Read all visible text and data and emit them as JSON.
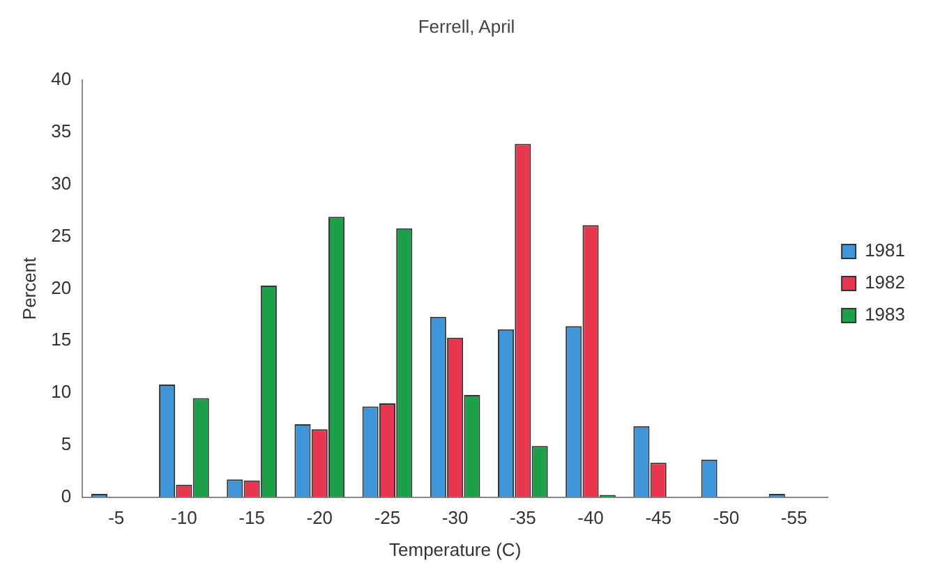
{
  "chart_data": {
    "type": "bar",
    "title": "Ferrell, April",
    "xlabel": "Temperature (C)",
    "ylabel": "Percent",
    "categories": [
      "-5",
      "-10",
      "-15",
      "-20",
      "-25",
      "-30",
      "-35",
      "-40",
      "-45",
      "-50",
      "-55"
    ],
    "series": [
      {
        "name": "1981",
        "color": "#3f95d8",
        "values": [
          0.3,
          10.8,
          1.7,
          7.0,
          8.7,
          17.3,
          16.1,
          16.4,
          6.8,
          3.6,
          0.3
        ]
      },
      {
        "name": "1982",
        "color": "#e8374f",
        "values": [
          0,
          1.2,
          1.6,
          6.5,
          9.0,
          15.3,
          33.9,
          26.1,
          3.3,
          0,
          0
        ]
      },
      {
        "name": "1983",
        "color": "#1ea04a",
        "values": [
          0,
          9.5,
          20.3,
          26.9,
          25.8,
          9.8,
          4.9,
          0.2,
          0,
          0,
          0
        ]
      }
    ],
    "ylim": [
      0,
      40
    ],
    "yticks": [
      0,
      5,
      10,
      15,
      20,
      25,
      30,
      35,
      40
    ],
    "grid": false,
    "legend": "right"
  }
}
